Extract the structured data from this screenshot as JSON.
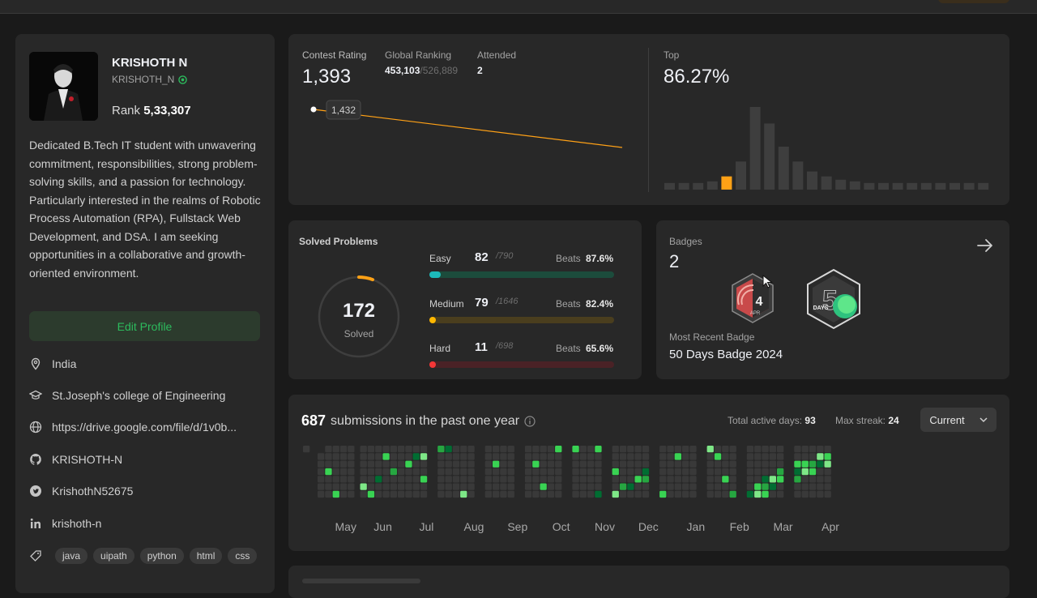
{
  "profile": {
    "name": "KRISHOTH N",
    "username": "KRISHOTH_N",
    "rank_label": "Rank",
    "rank_value": "5,33,307",
    "bio": "Dedicated B.Tech IT student with unwavering commitment, responsibilities, strong problem-solving skills, and a passion for technology. Particularly interested in the realms of Robotic Process Automation (RPA), Fullstack Web Development, and DSA. I am seeking opportunities in a collaborative and growth-oriented environment.",
    "edit_label": "Edit Profile",
    "location": "India",
    "school": "St.Joseph's college of Engineering",
    "website": "https://drive.google.com/file/d/1v0b...",
    "github": "KRISHOTH-N",
    "twitter": "KrishothN52675",
    "linkedin": "krishoth-n",
    "skills": [
      "java",
      "uipath",
      "python",
      "html",
      "css"
    ]
  },
  "contest": {
    "rating_label": "Contest Rating",
    "rating": "1,393",
    "ranking_label": "Global Ranking",
    "ranking": "453,103",
    "ranking_total": "/526,889",
    "attended_label": "Attended",
    "attended": "2",
    "tooltip": "1,432",
    "top_label": "Top",
    "top_value": "86.27%",
    "histogram": [
      0.08,
      0.08,
      0.08,
      0.1,
      0.16,
      0.34,
      1.0,
      0.8,
      0.52,
      0.34,
      0.22,
      0.16,
      0.12,
      0.1,
      0.08,
      0.08,
      0.08,
      0.08,
      0.08,
      0.08,
      0.08,
      0.08,
      0.08
    ],
    "highlight_index": 4,
    "accent": "#ffa116"
  },
  "solved": {
    "title": "Solved Problems",
    "total": "172",
    "total_label": "Solved",
    "difficulties": [
      {
        "name": "Easy",
        "solved": "82",
        "total": "/790",
        "beats_label": "Beats",
        "beats": "87.6%",
        "fill": 0.06,
        "color": "#1cbaba",
        "track": "#1c4c3c"
      },
      {
        "name": "Medium",
        "solved": "79",
        "total": "/1646",
        "beats_label": "Beats",
        "beats": "82.4%",
        "fill": 0.03,
        "color": "#ffb700",
        "track": "#4a3e1e"
      },
      {
        "name": "Hard",
        "solved": "11",
        "total": "/698",
        "beats_label": "Beats",
        "beats": "65.6%",
        "fill": 0.01,
        "color": "#f63737",
        "track": "#4a2226"
      }
    ]
  },
  "badges": {
    "title": "Badges",
    "count": "2",
    "recent_label": "Most Recent Badge",
    "recent_name": "50 Days Badge 2024",
    "badge1_num": "4",
    "badge1_month": "APR",
    "badge2_text": "DAYS"
  },
  "heatmap": {
    "count": "687",
    "text": "submissions in the past one year",
    "active_label": "Total active days:",
    "active_value": "93",
    "streak_label": "Max streak:",
    "streak_value": "24",
    "dropdown": "Current",
    "months": [
      "May",
      "Jun",
      "Jul",
      "Aug",
      "Sep",
      "Oct",
      "Nov",
      "Dec",
      "Jan",
      "Feb",
      "Mar",
      "Apr"
    ]
  }
}
